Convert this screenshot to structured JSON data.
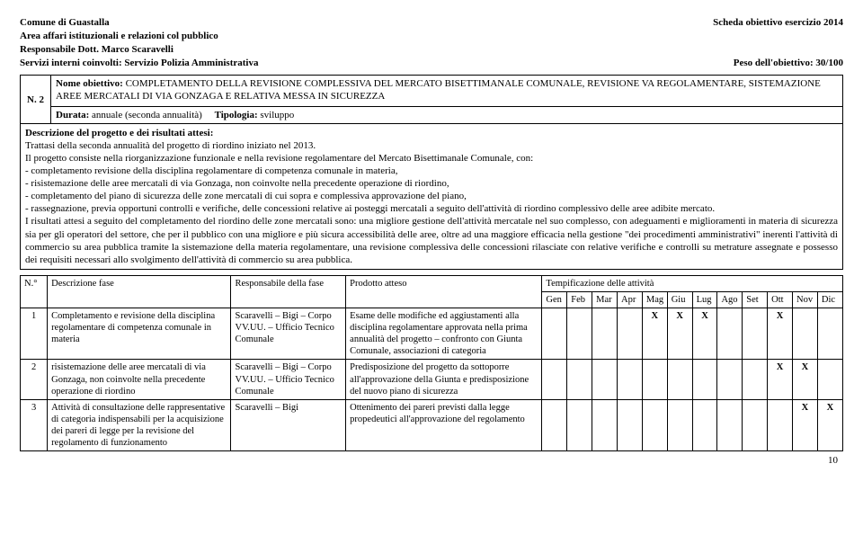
{
  "header": {
    "left": {
      "l1": "Comune di Guastalla",
      "l2": "Area affari istituzionali e relazioni col pubblico",
      "l3": "Responsabile Dott. Marco Scaravelli",
      "l4": "Servizi interni coinvolti: Servizio Polizia Amministrativa"
    },
    "right": {
      "l1": "Scheda obiettivo esercizio 2014",
      "l2": "Peso dell'obiettivo: 30/100"
    }
  },
  "objective": {
    "num": "N. 2",
    "name_label": "Nome obiettivo:",
    "name": " COMPLETAMENTO DELLA REVISIONE COMPLESSIVA DEL MERCATO BISETTIMANALE COMUNALE, REVISIONE VA REGOLAMENTARE, SISTEMAZIONE AREE MERCATALI DI VIA GONZAGA E RELATIVA MESSA IN SICUREZZA",
    "durata_label": "Durata:",
    "durata": " annuale (seconda annualità)",
    "tipologia_label": "Tipologia:",
    "tipologia": " sviluppo"
  },
  "description": {
    "label": "Descrizione del progetto e dei risultati attesi:",
    "body": "Trattasi della seconda annualità del progetto di riordino iniziato nel 2013.\nIl progetto consiste nella riorganizzazione funzionale e nella revisione regolamentare del Mercato Bisettimanale Comunale, con:\n- completamento revisione della disciplina regolamentare di competenza comunale in materia,\n- risistemazione delle aree mercatali di via Gonzaga, non coinvolte nella precedente operazione di riordino,\n- completamento del piano di sicurezza delle zone mercatali di cui sopra e complessiva approvazione del piano,\n- rassegnazione, previa opportuni controlli e verifiche, delle concessioni relative ai posteggi mercatali a seguito dell'attività di riordino complessivo delle aree adibite mercato.\nI risultati attesi a seguito del completamento del riordino delle zone mercatali sono: una migliore gestione dell'attività mercatale nel suo complesso, con adeguamenti e miglioramenti in materia di sicurezza sia per gli operatori del settore, che per il pubblico con una migliore e più sicura accessibilità delle aree, oltre ad una maggiore efficacia nella gestione \"dei procedimenti amministrativi\" inerenti l'attività di commercio su area pubblica tramite la sistemazione della materia regolamentare, una revisione complessiva delle concessioni rilasciate con relative verifiche e controlli su metrature assegnate e possesso dei requisiti necessari allo svolgimento dell'attività di commercio su area pubblica."
  },
  "table": {
    "headers": {
      "num": "N.°",
      "fase": "Descrizione fase",
      "resp": "Responsabile della fase",
      "prod": "Prodotto atteso",
      "timing": "Tempificazione delle attività"
    },
    "months": [
      "Gen",
      "Feb",
      "Mar",
      "Apr",
      "Mag",
      "Giu",
      "Lug",
      "Ago",
      "Set",
      "Ott",
      "Nov",
      "Dic"
    ],
    "rows": [
      {
        "n": "1",
        "fase": "Completamento e revisione della disciplina regolamentare di competenza comunale in materia",
        "resp": "Scaravelli – Bigi – Corpo VV.UU. – Ufficio Tecnico Comunale",
        "prod": "Esame delle modifiche ed aggiustamenti alla disciplina regolamentare approvata nella prima annualità del progetto – confronto con Giunta Comunale, associazioni di categoria",
        "marks": [
          "",
          "",
          "",
          "",
          "X",
          "X",
          "X",
          "",
          "",
          "X",
          "",
          ""
        ]
      },
      {
        "n": "2",
        "fase": "risistemazione delle aree mercatali di via Gonzaga, non coinvolte nella precedente operazione di riordino",
        "resp": "Scaravelli – Bigi – Corpo VV.UU. – Ufficio Tecnico Comunale",
        "prod": "Predisposizione del progetto da sottoporre all'approvazione della Giunta e predisposizione del nuovo piano di sicurezza",
        "marks": [
          "",
          "",
          "",
          "",
          "",
          "",
          "",
          "",
          "",
          "X",
          "X",
          ""
        ]
      },
      {
        "n": "3",
        "fase": "Attività di consultazione delle rappresentative di categoria indispensabili per la acquisizione dei pareri di legge per la revisione del regolamento di funzionamento",
        "resp": "Scaravelli – Bigi",
        "prod": "Ottenimento dei pareri previsti dalla legge propedeutici all'approvazione del regolamento",
        "marks": [
          "",
          "",
          "",
          "",
          "",
          "",
          "",
          "",
          "",
          "",
          "X",
          "X"
        ]
      }
    ]
  },
  "pagenum": "10"
}
